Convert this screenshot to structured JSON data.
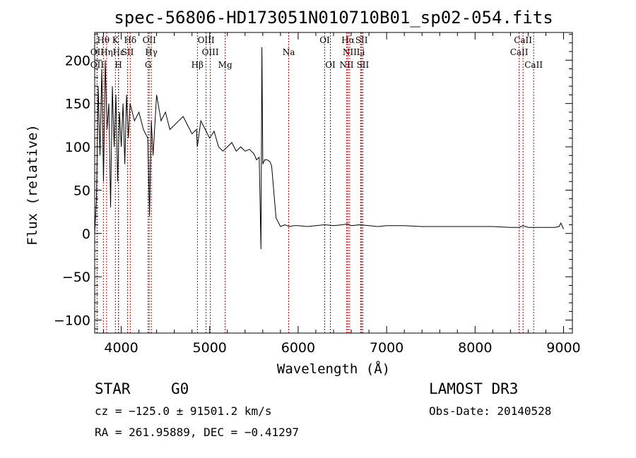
{
  "chart_data": {
    "type": "line",
    "title": "spec-56806-HD173051N010710B01_sp02-054.fits",
    "xlabel": "Wavelength (Å)",
    "ylabel": "Flux (relative)",
    "xlim": [
      3700,
      9100
    ],
    "ylim": [
      -115,
      232
    ],
    "xticks": [
      4000,
      5000,
      6000,
      7000,
      8000,
      9000
    ],
    "yticks": [
      -100,
      -50,
      0,
      50,
      100,
      150,
      200
    ],
    "series": [
      {
        "name": "spectrum",
        "x": [
          3700,
          3720,
          3740,
          3760,
          3780,
          3800,
          3820,
          3840,
          3860,
          3880,
          3900,
          3920,
          3940,
          3960,
          3980,
          4000,
          4020,
          4040,
          4060,
          4080,
          4100,
          4150,
          4200,
          4250,
          4300,
          4320,
          4340,
          4360,
          4400,
          4450,
          4500,
          4550,
          4600,
          4650,
          4700,
          4750,
          4800,
          4850,
          4860,
          4900,
          4950,
          5000,
          5050,
          5100,
          5150,
          5200,
          5250,
          5300,
          5350,
          5400,
          5450,
          5500,
          5530,
          5560,
          5580,
          5590,
          5600,
          5620,
          5650,
          5680,
          5700,
          5750,
          5800,
          5850,
          5900,
          5950,
          6000,
          6100,
          6200,
          6300,
          6400,
          6500,
          6560,
          6600,
          6700,
          6800,
          6900,
          7000,
          7200,
          7400,
          7600,
          7800,
          8000,
          8200,
          8400,
          8500,
          8542,
          8600,
          8700,
          8800,
          8900,
          8950,
          8970,
          9000
        ],
        "values": [
          0,
          40,
          170,
          90,
          190,
          60,
          200,
          120,
          150,
          30,
          170,
          100,
          160,
          60,
          140,
          100,
          150,
          80,
          160,
          110,
          150,
          130,
          140,
          120,
          110,
          20,
          130,
          90,
          160,
          130,
          140,
          120,
          125,
          130,
          135,
          125,
          115,
          120,
          100,
          130,
          120,
          110,
          118,
          100,
          95,
          100,
          105,
          95,
          100,
          95,
          97,
          92,
          85,
          88,
          -18,
          215,
          80,
          85,
          85,
          83,
          78,
          18,
          8,
          10,
          8,
          9,
          9,
          8,
          9,
          10,
          9,
          10,
          11,
          9,
          10,
          9,
          8,
          9,
          9,
          8,
          8,
          8,
          8,
          8,
          7,
          7,
          9,
          7,
          7,
          7,
          7,
          8,
          12,
          5
        ]
      }
    ],
    "spectral_lines": [
      {
        "label": "Hθ",
        "wavelength": 3798,
        "row": 1
      },
      {
        "label": "OII",
        "wavelength": 3727,
        "row": 2
      },
      {
        "label": "OII",
        "wavelength": 3727,
        "row": 3
      },
      {
        "label": "Hη",
        "wavelength": 3835,
        "row": 2
      },
      {
        "label": "K",
        "wavelength": 3934,
        "row": 1
      },
      {
        "label": "Hε",
        "wavelength": 3970,
        "row": 2
      },
      {
        "label": "H",
        "wavelength": 3968,
        "row": 3
      },
      {
        "label": "Hδ",
        "wavelength": 4102,
        "row": 1
      },
      {
        "label": "SII",
        "wavelength": 4072,
        "row": 2
      },
      {
        "label": "OII",
        "wavelength": 4317,
        "row": 1
      },
      {
        "label": "Hγ",
        "wavelength": 4340,
        "row": 2
      },
      {
        "label": "G",
        "wavelength": 4304,
        "row": 3
      },
      {
        "label": "OIII",
        "wavelength": 4959,
        "row": 1
      },
      {
        "label": "OIII",
        "wavelength": 5007,
        "row": 2
      },
      {
        "label": "Hβ",
        "wavelength": 4861,
        "row": 3
      },
      {
        "label": "Mg",
        "wavelength": 5175,
        "row": 3
      },
      {
        "label": "Na",
        "wavelength": 5893,
        "row": 2
      },
      {
        "label": "OI",
        "wavelength": 6300,
        "row": 1
      },
      {
        "label": "OI",
        "wavelength": 6364,
        "row": 3
      },
      {
        "label": "Hα",
        "wavelength": 6563,
        "row": 1
      },
      {
        "label": "SII",
        "wavelength": 6717,
        "row": 1
      },
      {
        "label": "NII",
        "wavelength": 6583,
        "row": 2
      },
      {
        "label": "Li",
        "wavelength": 6708,
        "row": 2
      },
      {
        "label": "NII",
        "wavelength": 6548,
        "row": 3
      },
      {
        "label": "SII",
        "wavelength": 6731,
        "row": 3
      },
      {
        "label": "CaII",
        "wavelength": 8542,
        "row": 1
      },
      {
        "label": "CaII",
        "wavelength": 8498,
        "row": 2
      },
      {
        "label": "CaII",
        "wavelength": 8662,
        "row": 3
      }
    ]
  },
  "info": {
    "object_class": "STAR",
    "subclass": "G0",
    "survey": "LAMOST DR3",
    "redshift_text": "cz = −125.0 ± 91501.2 km/s",
    "obs_date": "Obs-Date: 20140528",
    "coords": "RA = 261.95889, DEC =  −0.41297"
  },
  "colors": {
    "axis": "#000000",
    "spectrum": "#000000",
    "line_marker": "#c00000"
  }
}
